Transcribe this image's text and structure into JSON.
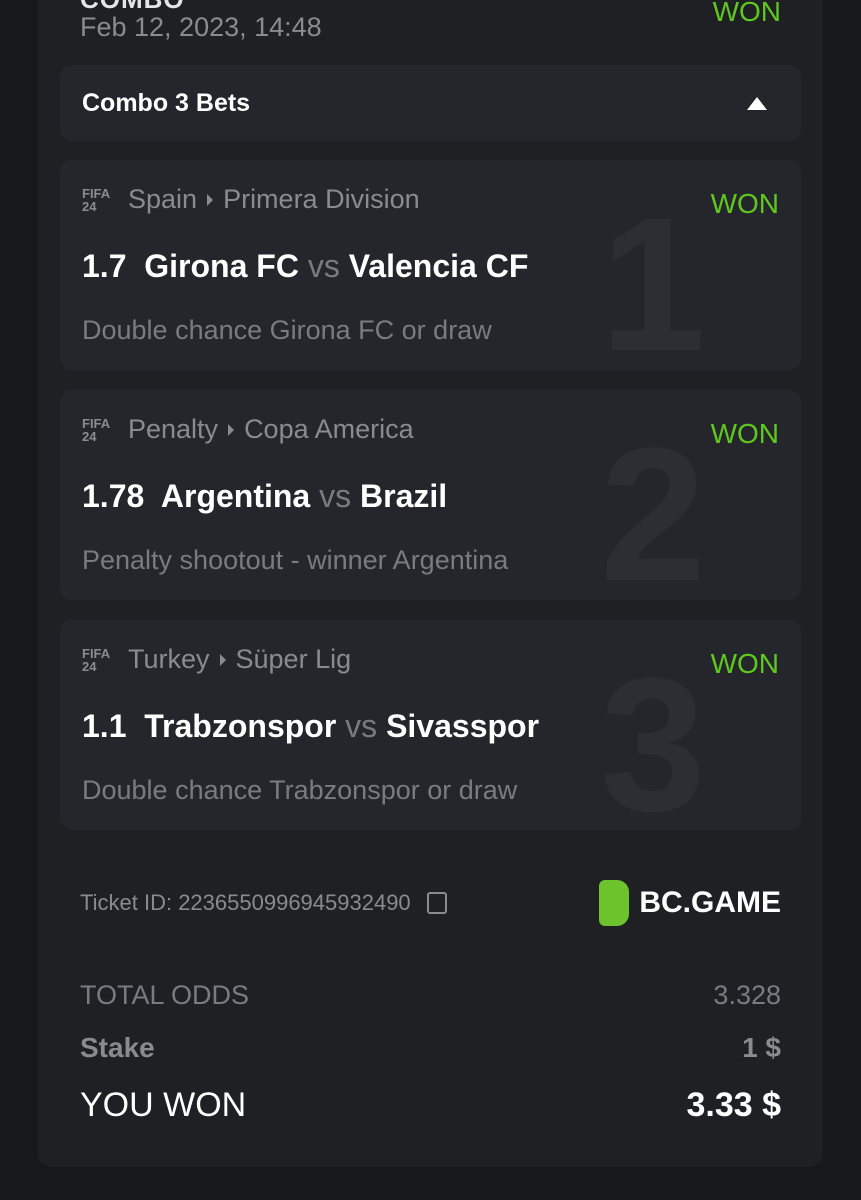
{
  "header": {
    "title": "COMBO",
    "date": "Feb 12, 2023, 14:48",
    "status": "WON"
  },
  "combo": {
    "label": "Combo 3 Bets"
  },
  "bets": [
    {
      "index": "1",
      "badge": "FIFA 24",
      "country": "Spain",
      "league": "Primera Division",
      "status": "WON",
      "odds": "1.7",
      "home": "Girona FC",
      "vs": "vs",
      "away": "Valencia CF",
      "market": "Double chance Girona FC or draw"
    },
    {
      "index": "2",
      "badge": "FIFA 24",
      "country": "Penalty",
      "league": "Copa America",
      "status": "WON",
      "odds": "1.78",
      "home": "Argentina",
      "vs": "vs",
      "away": "Brazil",
      "market": "Penalty shootout - winner Argentina"
    },
    {
      "index": "3",
      "badge": "FIFA 24",
      "country": "Turkey",
      "league": "Süper Lig",
      "status": "WON",
      "odds": "1.1",
      "home": "Trabzonspor",
      "vs": "vs",
      "away": "Sivasspor",
      "market": "Double chance Trabzonspor or draw"
    }
  ],
  "ticket": {
    "label": "Ticket ID: 2236550996945932490",
    "brand": "BC.GAME"
  },
  "summary": {
    "total_odds_label": "TOTAL ODDS",
    "total_odds": "3.328",
    "stake_label": "Stake",
    "stake": "1 $",
    "won_label": "YOU WON",
    "won": "3.33 $"
  },
  "colors": {
    "won": "#5fc81e",
    "card": "#1f2024",
    "bet_card": "#25262b"
  }
}
